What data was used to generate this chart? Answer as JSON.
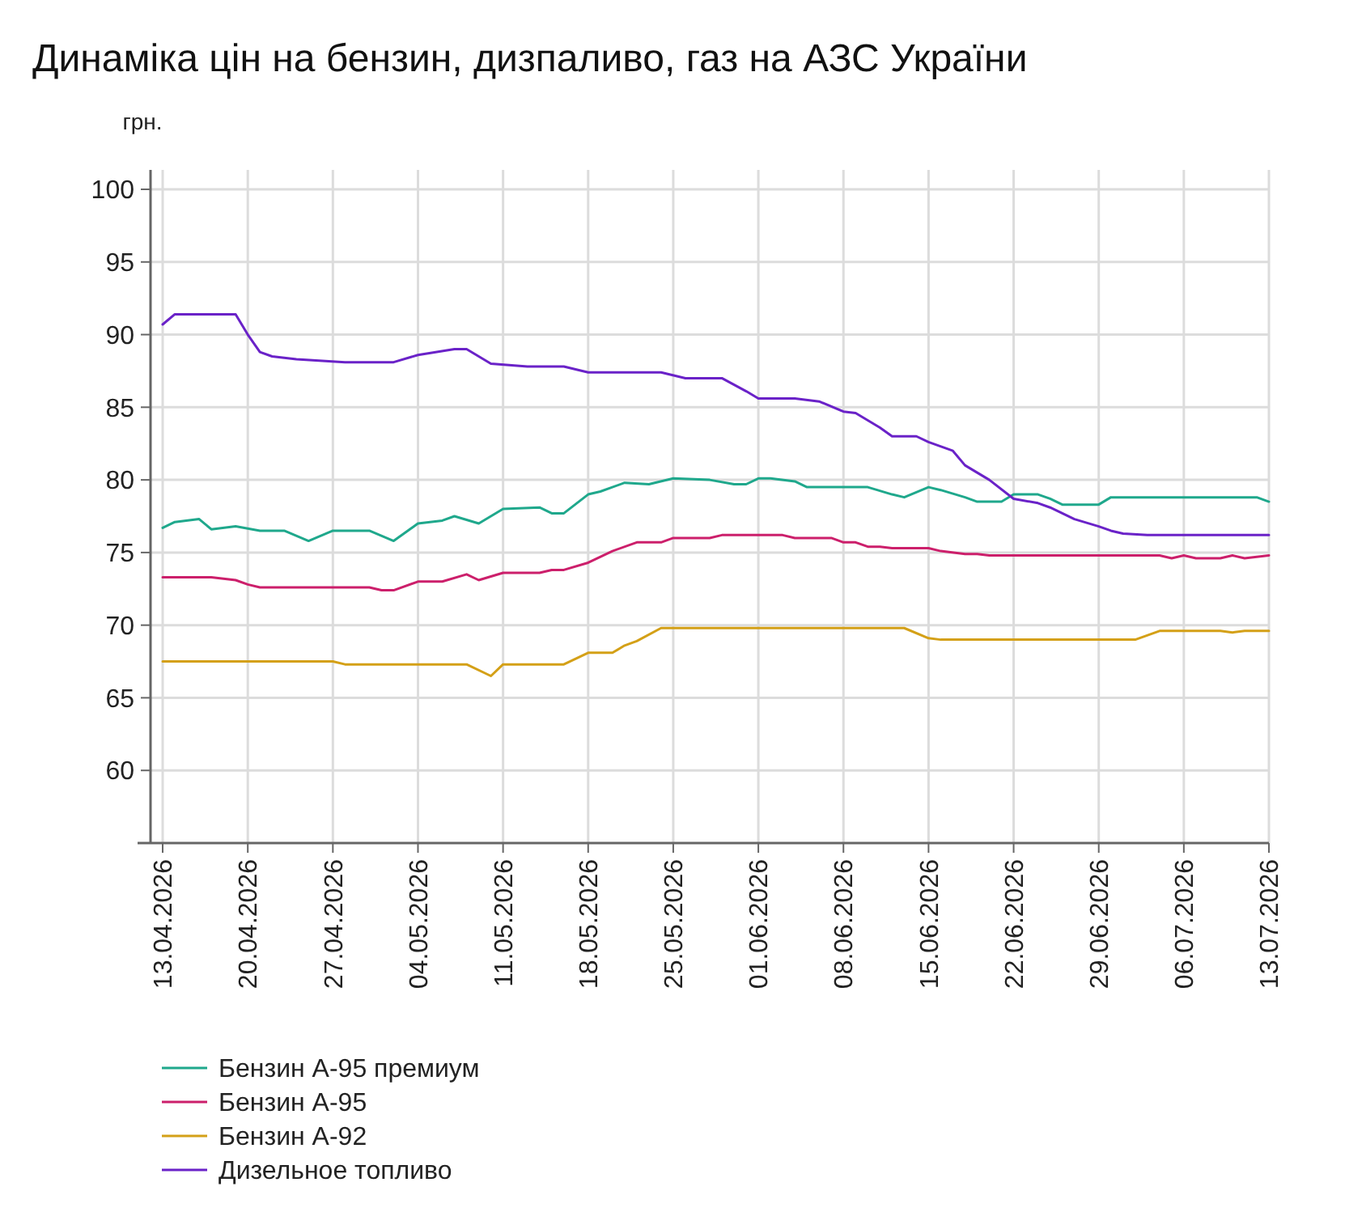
{
  "chart_data": {
    "type": "line",
    "title": "Динаміка цін на бензин, дизпаливо, газ на АЗС України",
    "ylabel": "грн.",
    "xlim": [
      "2026-04-12",
      "2026-07-13"
    ],
    "xticks": [
      {
        "value": "2026-04-13",
        "label": "13.04.2026"
      },
      {
        "value": "2026-04-20",
        "label": "20.04.2026"
      },
      {
        "value": "2026-04-27",
        "label": "27.04.2026"
      },
      {
        "value": "2026-05-04",
        "label": "04.05.2026"
      },
      {
        "value": "2026-05-11",
        "label": "11.05.2026"
      },
      {
        "value": "2026-05-18",
        "label": "18.05.2026"
      },
      {
        "value": "2026-05-25",
        "label": "25.05.2026"
      },
      {
        "value": "2026-06-01",
        "label": "01.06.2026"
      },
      {
        "value": "2026-06-08",
        "label": "08.06.2026"
      },
      {
        "value": "2026-06-15",
        "label": "15.06.2026"
      },
      {
        "value": "2026-06-22",
        "label": "22.06.2026"
      },
      {
        "value": "2026-06-29",
        "label": "29.06.2026"
      },
      {
        "value": "2026-07-06",
        "label": "06.07.2026"
      },
      {
        "value": "2026-07-13",
        "label": "13.07.2026"
      }
    ],
    "ylim": [
      55,
      100
    ],
    "yticks": [
      60,
      65,
      70,
      75,
      80,
      85,
      90,
      95,
      100
    ],
    "grid": true,
    "legend": "bottom left",
    "series": [
      {
        "name": "Бензин А-95 премиум",
        "color": "#1fa88c",
        "x": [
          "2026-04-13",
          "2026-04-14",
          "2026-04-16",
          "2026-04-17",
          "2026-04-19",
          "2026-04-21",
          "2026-04-23",
          "2026-04-25",
          "2026-04-27",
          "2026-04-30",
          "2026-05-02",
          "2026-05-04",
          "2026-05-06",
          "2026-05-07",
          "2026-05-09",
          "2026-05-11",
          "2026-05-14",
          "2026-05-15",
          "2026-05-16",
          "2026-05-18",
          "2026-05-19",
          "2026-05-21",
          "2026-05-23",
          "2026-05-25",
          "2026-05-28",
          "2026-05-30",
          "2026-05-31",
          "2026-06-01",
          "2026-06-02",
          "2026-06-04",
          "2026-06-05",
          "2026-06-10",
          "2026-06-12",
          "2026-06-13",
          "2026-06-15",
          "2026-06-16",
          "2026-06-18",
          "2026-06-19",
          "2026-06-21",
          "2026-06-22",
          "2026-06-24",
          "2026-06-25",
          "2026-06-26",
          "2026-06-29",
          "2026-06-30",
          "2026-07-12",
          "2026-07-13"
        ],
        "values": [
          76.7,
          77.1,
          77.3,
          76.6,
          76.8,
          76.5,
          76.5,
          75.8,
          76.5,
          76.5,
          75.8,
          77.0,
          77.2,
          77.5,
          77.0,
          78.0,
          78.1,
          77.7,
          77.7,
          79.0,
          79.2,
          79.8,
          79.7,
          80.1,
          80.0,
          79.7,
          79.7,
          80.1,
          80.1,
          79.9,
          79.5,
          79.5,
          79.0,
          78.8,
          79.5,
          79.3,
          78.8,
          78.5,
          78.5,
          79.0,
          79.0,
          78.7,
          78.3,
          78.3,
          78.8,
          78.8,
          78.5
        ]
      },
      {
        "name": "Бензин А-95",
        "color": "#cc1f6b",
        "x": [
          "2026-04-13",
          "2026-04-17",
          "2026-04-19",
          "2026-04-20",
          "2026-04-21",
          "2026-04-30",
          "2026-05-01",
          "2026-05-02",
          "2026-05-04",
          "2026-05-06",
          "2026-05-08",
          "2026-05-09",
          "2026-05-11",
          "2026-05-14",
          "2026-05-15",
          "2026-05-16",
          "2026-05-18",
          "2026-05-20",
          "2026-05-22",
          "2026-05-24",
          "2026-05-25",
          "2026-05-28",
          "2026-05-29",
          "2026-06-03",
          "2026-06-04",
          "2026-06-07",
          "2026-06-08",
          "2026-06-09",
          "2026-06-10",
          "2026-06-11",
          "2026-06-12",
          "2026-06-15",
          "2026-06-16",
          "2026-06-18",
          "2026-06-19",
          "2026-06-20",
          "2026-07-04",
          "2026-07-05",
          "2026-07-06",
          "2026-07-07",
          "2026-07-09",
          "2026-07-10",
          "2026-07-11",
          "2026-07-13"
        ],
        "values": [
          73.3,
          73.3,
          73.1,
          72.8,
          72.6,
          72.6,
          72.4,
          72.4,
          73.0,
          73.0,
          73.5,
          73.1,
          73.6,
          73.6,
          73.8,
          73.8,
          74.3,
          75.1,
          75.7,
          75.7,
          76.0,
          76.0,
          76.2,
          76.2,
          76.0,
          76.0,
          75.7,
          75.7,
          75.4,
          75.4,
          75.3,
          75.3,
          75.1,
          74.9,
          74.9,
          74.8,
          74.8,
          74.6,
          74.8,
          74.6,
          74.6,
          74.8,
          74.6,
          74.8
        ]
      },
      {
        "name": "Бензин А-92",
        "color": "#d4a017",
        "x": [
          "2026-04-13",
          "2026-04-27",
          "2026-04-28",
          "2026-05-08",
          "2026-05-10",
          "2026-05-11",
          "2026-05-16",
          "2026-05-18",
          "2026-05-20",
          "2026-05-21",
          "2026-05-22",
          "2026-05-24",
          "2026-06-13",
          "2026-06-15",
          "2026-06-16",
          "2026-07-02",
          "2026-07-04",
          "2026-07-09",
          "2026-07-10",
          "2026-07-11",
          "2026-07-13"
        ],
        "values": [
          67.5,
          67.5,
          67.3,
          67.3,
          66.5,
          67.3,
          67.3,
          68.1,
          68.1,
          68.6,
          68.9,
          69.8,
          69.8,
          69.1,
          69.0,
          69.0,
          69.6,
          69.6,
          69.5,
          69.6,
          69.6
        ]
      },
      {
        "name": "Дизельное топливо",
        "color": "#6a22c8",
        "x": [
          "2026-04-13",
          "2026-04-14",
          "2026-04-19",
          "2026-04-20",
          "2026-04-21",
          "2026-04-22",
          "2026-04-24",
          "2026-04-28",
          "2026-05-02",
          "2026-05-04",
          "2026-05-07",
          "2026-05-08",
          "2026-05-10",
          "2026-05-13",
          "2026-05-16",
          "2026-05-18",
          "2026-05-24",
          "2026-05-26",
          "2026-05-29",
          "2026-05-31",
          "2026-06-01",
          "2026-06-04",
          "2026-06-06",
          "2026-06-08",
          "2026-06-09",
          "2026-06-11",
          "2026-06-12",
          "2026-06-14",
          "2026-06-15",
          "2026-06-17",
          "2026-06-18",
          "2026-06-20",
          "2026-06-22",
          "2026-06-24",
          "2026-06-25",
          "2026-06-27",
          "2026-06-29",
          "2026-06-30",
          "2026-07-01",
          "2026-07-03",
          "2026-07-13"
        ],
        "values": [
          90.7,
          91.4,
          91.4,
          90.0,
          88.8,
          88.5,
          88.3,
          88.1,
          88.1,
          88.6,
          89.0,
          89.0,
          88.0,
          87.8,
          87.8,
          87.4,
          87.4,
          87.0,
          87.0,
          86.1,
          85.6,
          85.6,
          85.4,
          84.7,
          84.6,
          83.6,
          83.0,
          83.0,
          82.6,
          82.0,
          81.0,
          80.0,
          78.7,
          78.4,
          78.1,
          77.3,
          76.8,
          76.5,
          76.3,
          76.2,
          76.2
        ]
      }
    ]
  }
}
